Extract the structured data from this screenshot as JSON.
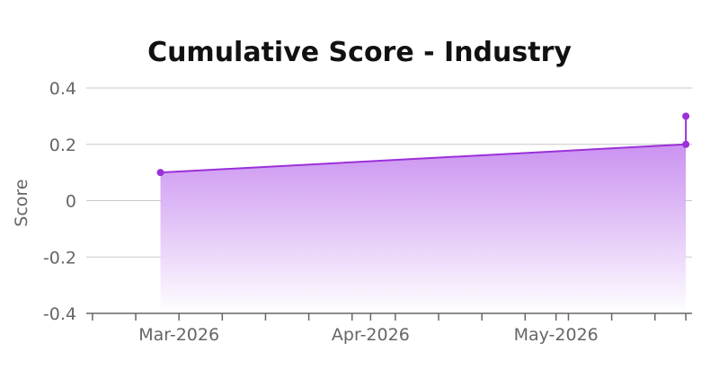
{
  "chart_data": {
    "type": "area",
    "title": "Cumulative Score - Industry",
    "xlabel": "",
    "ylabel": "Score",
    "ylim": [
      -0.4,
      0.4
    ],
    "yticks": [
      0.4,
      0.2,
      0,
      -0.2,
      -0.4
    ],
    "ytick_labels": [
      "0.4",
      "0.2",
      "0",
      "-0.2",
      "-0.4"
    ],
    "xlim": [
      "2026-02-14",
      "2026-05-23"
    ],
    "xtick_labels": [
      {
        "label": "Mar-2026",
        "date": "2026-03-01"
      },
      {
        "label": "Apr-2026",
        "date": "2026-04-01"
      },
      {
        "label": "May-2026",
        "date": "2026-05-01"
      }
    ],
    "minor_tick_dates": [
      "2026-02-15",
      "2026-02-22",
      "2026-03-08",
      "2026-03-15",
      "2026-03-22",
      "2026-03-29",
      "2026-04-05",
      "2026-04-12",
      "2026-04-19",
      "2026-04-26",
      "2026-05-03",
      "2026-05-10",
      "2026-05-17",
      "2026-05-22"
    ],
    "series": [
      {
        "points": [
          {
            "x": "2026-02-26",
            "y": 0.1
          },
          {
            "x": "2026-05-22",
            "y": 0.2
          },
          {
            "x": "2026-05-22",
            "y": 0.3
          }
        ]
      }
    ],
    "grid": true,
    "colors": {
      "line": "#9b30d9",
      "fill_top": "#c88df0",
      "fill_bottom": "#ffffff"
    }
  }
}
